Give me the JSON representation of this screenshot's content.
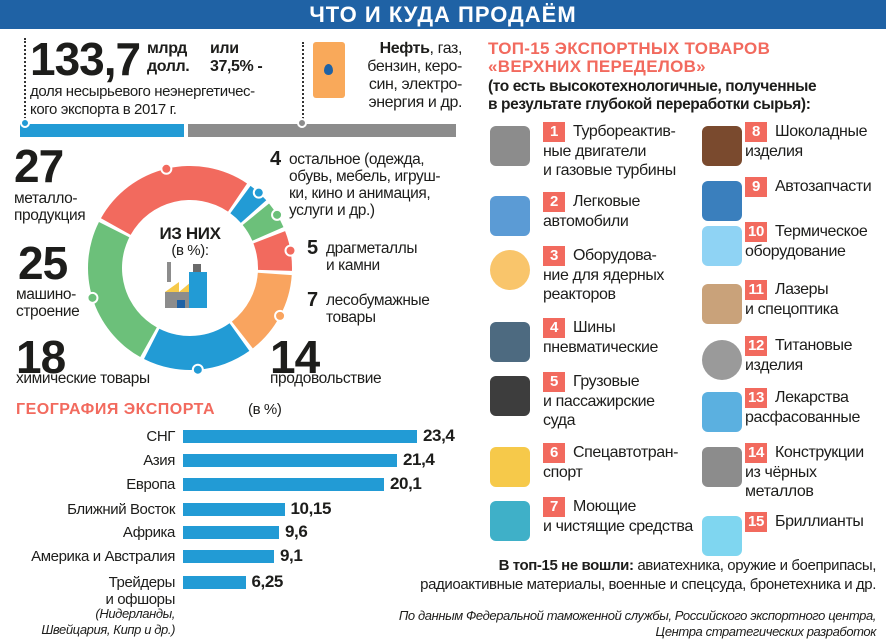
{
  "header": {
    "title": "ЧТО И КУДА ПРОДАЁМ"
  },
  "summary": {
    "value": "133,7",
    "unit": "млрд\nдолл.",
    "share": "или\n37,5% -",
    "desc": "доля несырьевого неэнергетичес-\nкого экспорта в 2017 г.",
    "share_percent": 37.5,
    "energy_bold": "Нефть",
    "energy_text": ", газ,\nбензин, керо-\nсин, электро-\nэнергия и др.",
    "colors": {
      "non_energy": "#229bd5",
      "energy": "#8c8c8c"
    }
  },
  "chart_data": [
    {
      "type": "pie",
      "center_title": "ИЗ НИХ",
      "center_sub": "(в %):",
      "slices": [
        {
          "value": 27,
          "value_label": "27",
          "label": "металло-\nпродукция",
          "color": "#f26a5e"
        },
        {
          "value": 4,
          "value_label": "4",
          "label": "остальное (одежда,\nобувь, мебель, игруш-\nки, кино и анимация,\nуслуги и др.)",
          "color": "#229bd5"
        },
        {
          "value": 5,
          "value_label": "5",
          "label": "драгметаллы\nи камни",
          "color": "#6cc07a"
        },
        {
          "value": 7,
          "value_label": "7",
          "label": "лесобумажные\nтовары",
          "color": "#f26a5e"
        },
        {
          "value": 14,
          "value_label": "14",
          "label": "продовольствие",
          "color": "#f9a45f"
        },
        {
          "value": 18,
          "value_label": "18",
          "label": "химические товары",
          "color": "#229bd5"
        },
        {
          "value": 25,
          "value_label": "25",
          "label": "машино-\nстроение",
          "color": "#6cc07a"
        }
      ]
    },
    {
      "type": "bar",
      "title": "ГЕОГРАФИЯ ЭКСПОРТА",
      "unit": "(в %)",
      "categories": [
        "СНГ",
        "Азия",
        "Европа",
        "Ближний Восток",
        "Африка",
        "Америка и Австралия",
        "Трейдеры\nи офшоры"
      ],
      "values": [
        23.4,
        21.4,
        20.1,
        10.15,
        9.6,
        9.1,
        6.25
      ],
      "value_labels": [
        "23,4",
        "21,4",
        "20,1",
        "10,15",
        "9,6",
        "9,1",
        "6,25"
      ],
      "note": "(Нидерланды,\nШвейцария, Кипр и др.)",
      "color": "#229bd5"
    }
  ],
  "top15": {
    "title": "ТОП-15 ЭКСПОРТНЫХ ТОВАРОВ\n«ВЕРХНИХ ПЕРЕДЕЛОВ»",
    "subtitle": "(то есть высокотехнологичные, полученные\nв результате глубокой переработки сырья):",
    "items": [
      {
        "n": "1",
        "label": "Турбореактив-\nные двигатели\nи газовые турбины",
        "icon": "gears-icon"
      },
      {
        "n": "2",
        "label": "Легковые\nавтомобили",
        "icon": "car-icon"
      },
      {
        "n": "3",
        "label": "Оборудова-\nние для ядерных\nреакторов",
        "icon": "radiation-icon"
      },
      {
        "n": "4",
        "label": "Шины\nпневматические",
        "icon": "tires-icon"
      },
      {
        "n": "5",
        "label": "Грузовые\nи пассажирские\nсуда",
        "icon": "ship-icon"
      },
      {
        "n": "6",
        "label": "Спецавтотран-\nспорт",
        "icon": "bulldozer-icon"
      },
      {
        "n": "7",
        "label": "Моющие\nи чистящие средства",
        "icon": "soap-icon"
      },
      {
        "n": "8",
        "label": "Шоколадные\nизделия",
        "icon": "chocolate-icon"
      },
      {
        "n": "9",
        "label": "Автозапчасти",
        "icon": "tools-icon"
      },
      {
        "n": "10",
        "label": "Термическое\nоборудование",
        "icon": "thermometer-icon"
      },
      {
        "n": "11",
        "label": "Лазеры\nи спецоптика",
        "icon": "laser-icon"
      },
      {
        "n": "12",
        "label": "Титановые\nизделия",
        "icon": "bearing-icon"
      },
      {
        "n": "13",
        "label": "Лекарства\nрасфасованные",
        "icon": "medicine-icon"
      },
      {
        "n": "14",
        "label": "Конструкции\nиз чёрных\nметаллов",
        "icon": "beam-icon"
      },
      {
        "n": "15",
        "label": "Бриллианты",
        "icon": "diamond-icon"
      }
    ],
    "excluded_bold": "В топ-15 не вошли:",
    "excluded_text": " авиатехника, оружие и боеприпасы,\nрадиоактивные материалы, военные и спецсуда, бронетехника и др."
  },
  "source": "По данным Федеральной таможенной службы, Российского экспортного центра,\nЦентра стратегических разработок",
  "accent": "#f26a5e"
}
